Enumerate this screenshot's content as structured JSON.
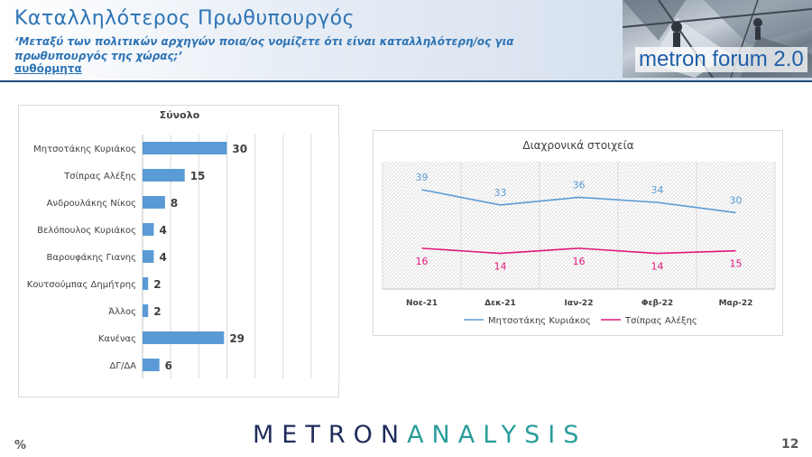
{
  "header": {
    "title": "Καταλληλότερος Πρωθυπουργός",
    "question": "‘Μεταξύ των πολιτικών αρχηγών ποια/ος νομίζετε ότι είναι καταλληλότερη/ος για πρωθυπουργός της χώρας;’",
    "subtitle": "αυθόρμητα",
    "logo_text": "metron forum 2.0"
  },
  "footer": {
    "brand_part1": "METRON",
    "brand_part2": "ANALYSIS",
    "unit": "%",
    "page": "12"
  },
  "colors": {
    "title": "#2e74b5",
    "bar": "#5b9bd5",
    "series1": "#5b9bd5",
    "series2": "#e0187c",
    "brand_dark": "#1f2d5c",
    "brand_teal": "#2a9d9a"
  },
  "chart_data": [
    {
      "type": "bar",
      "orientation": "horizontal",
      "title": "Σύνολο",
      "categories": [
        "Μητσοτάκης Κυριάκος",
        "Τσίπρας Αλέξης",
        "Ανδρουλάκης Νίκος",
        "Βελόπουλος Κυριάκος",
        "Βαρουφάκης Γιανης",
        "Κουτσούμπας Δημήτρης",
        "Άλλος",
        "Κανένας",
        "ΔΓ/ΔΑ"
      ],
      "values": [
        30,
        15,
        8,
        4,
        4,
        2,
        2,
        29,
        6
      ],
      "xlim": [
        0,
        70
      ],
      "grid": true
    },
    {
      "type": "line",
      "title": "Διαχρονικά στοιχεία",
      "categories": [
        "Νοε-21",
        "Δεκ-21",
        "Ιαν-22",
        "Φεβ-22",
        "Μαρ-22"
      ],
      "series": [
        {
          "name": "Μητσοτάκης Κυριάκος",
          "values": [
            39,
            33,
            36,
            34,
            30
          ]
        },
        {
          "name": "Τσίπρας Αλέξης",
          "values": [
            16,
            14,
            16,
            14,
            15
          ]
        }
      ],
      "legend": "bottom",
      "grid": true
    }
  ]
}
